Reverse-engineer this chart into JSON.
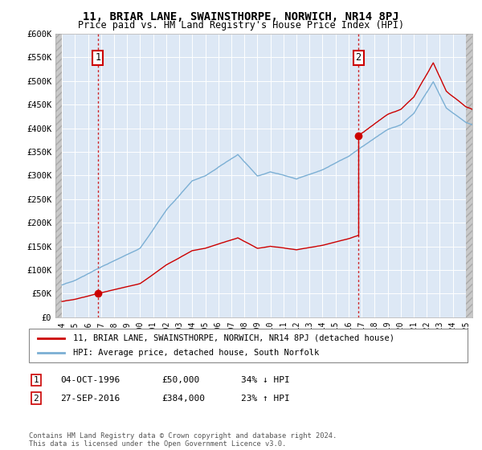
{
  "title": "11, BRIAR LANE, SWAINSTHORPE, NORWICH, NR14 8PJ",
  "subtitle": "Price paid vs. HM Land Registry's House Price Index (HPI)",
  "footer": "Contains HM Land Registry data © Crown copyright and database right 2024.\nThis data is licensed under the Open Government Licence v3.0.",
  "legend_line1": "11, BRIAR LANE, SWAINSTHORPE, NORWICH, NR14 8PJ (detached house)",
  "legend_line2": "HPI: Average price, detached house, South Norfolk",
  "annotation1_label": "1",
  "annotation1_date": "04-OCT-1996",
  "annotation1_price": "£50,000",
  "annotation1_hpi": "34% ↓ HPI",
  "annotation2_label": "2",
  "annotation2_date": "27-SEP-2016",
  "annotation2_price": "£384,000",
  "annotation2_hpi": "23% ↑ HPI",
  "sale1_x": 1996.75,
  "sale1_y": 50000,
  "sale2_x": 2016.75,
  "sale2_y": 384000,
  "ylim": [
    0,
    600000
  ],
  "xlim": [
    1993.5,
    2025.5
  ],
  "yticks": [
    0,
    50000,
    100000,
    150000,
    200000,
    250000,
    300000,
    350000,
    400000,
    450000,
    500000,
    550000,
    600000
  ],
  "ytick_labels": [
    "£0",
    "£50K",
    "£100K",
    "£150K",
    "£200K",
    "£250K",
    "£300K",
    "£350K",
    "£400K",
    "£450K",
    "£500K",
    "£550K",
    "£600K"
  ],
  "xticks": [
    1994,
    1995,
    1996,
    1997,
    1998,
    1999,
    2000,
    2001,
    2002,
    2003,
    2004,
    2005,
    2006,
    2007,
    2008,
    2009,
    2010,
    2011,
    2012,
    2013,
    2014,
    2015,
    2016,
    2017,
    2018,
    2019,
    2020,
    2021,
    2022,
    2023,
    2024,
    2025
  ],
  "hpi_color": "#7bafd4",
  "sale_color": "#cc0000",
  "background_plot": "#dde8f5",
  "grid_color": "#ffffff",
  "hatch_color": "#c8c8c8"
}
